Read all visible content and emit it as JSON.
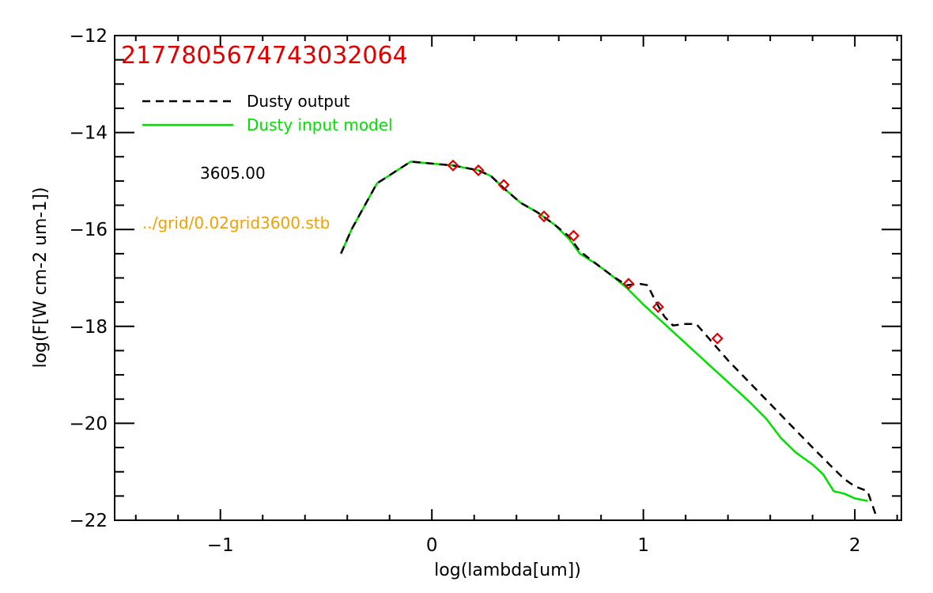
{
  "chart_data": {
    "type": "line",
    "title": "2177805674743032064",
    "xlabel": "log(lambda[um])",
    "ylabel": "log(F[W cm-2 um-1])",
    "xlim": [
      -1.5,
      2.22
    ],
    "ylim": [
      -22,
      -12
    ],
    "xticks": [
      -1,
      0,
      1,
      2
    ],
    "xtick_labels": [
      "−1",
      "0",
      "1",
      "2"
    ],
    "yticks": [
      -22,
      -20,
      -18,
      -16,
      -14,
      -12
    ],
    "ytick_labels": [
      "−22",
      "−20",
      "−18",
      "−16",
      "−14",
      "−12"
    ],
    "grid": false,
    "legend_position": "top-left",
    "annotations": {
      "temperature": "3605.00",
      "model_file": "../grid/0.02grid3600.stb"
    },
    "colors": {
      "output": "#000000",
      "input": "#00e000",
      "observed": "#e00000",
      "title": "#e00000",
      "model_file": "#f0a000"
    },
    "series": [
      {
        "name": "Dusty output",
        "style": "dashed",
        "x": [
          -0.43,
          -0.38,
          -0.26,
          -0.1,
          0.02,
          0.1,
          0.22,
          0.28,
          0.34,
          0.42,
          0.5,
          0.58,
          0.65,
          0.7,
          0.78,
          0.85,
          0.92,
          0.98,
          1.02,
          1.06,
          1.1,
          1.14,
          1.2,
          1.25,
          1.32,
          1.4,
          1.5,
          1.6,
          1.7,
          1.8,
          1.88,
          1.95,
          2.0,
          2.06,
          2.1
        ],
        "y": [
          -16.5,
          -16.0,
          -15.05,
          -14.6,
          -14.65,
          -14.68,
          -14.78,
          -14.9,
          -15.15,
          -15.45,
          -15.65,
          -15.9,
          -16.15,
          -16.45,
          -16.72,
          -16.95,
          -17.15,
          -17.12,
          -17.15,
          -17.5,
          -17.8,
          -17.98,
          -17.95,
          -17.95,
          -18.3,
          -18.7,
          -19.15,
          -19.6,
          -20.05,
          -20.5,
          -20.85,
          -21.15,
          -21.3,
          -21.4,
          -21.9
        ]
      },
      {
        "name": "Dusty input model",
        "style": "solid",
        "x": [
          -0.43,
          -0.38,
          -0.26,
          -0.1,
          0.02,
          0.1,
          0.22,
          0.28,
          0.34,
          0.42,
          0.5,
          0.58,
          0.65,
          0.7,
          0.78,
          0.85,
          0.92,
          1.0,
          1.1,
          1.2,
          1.3,
          1.4,
          1.5,
          1.58,
          1.65,
          1.72,
          1.8,
          1.85,
          1.9,
          1.95,
          2.0,
          2.06
        ],
        "y": [
          -16.5,
          -16.0,
          -15.05,
          -14.6,
          -14.65,
          -14.68,
          -14.78,
          -14.9,
          -15.15,
          -15.45,
          -15.65,
          -15.9,
          -16.2,
          -16.5,
          -16.72,
          -16.95,
          -17.2,
          -17.55,
          -17.95,
          -18.35,
          -18.75,
          -19.15,
          -19.55,
          -19.9,
          -20.3,
          -20.6,
          -20.85,
          -21.05,
          -21.4,
          -21.45,
          -21.55,
          -21.6
        ]
      },
      {
        "name": "observed",
        "style": "diamond",
        "x": [
          0.1,
          0.22,
          0.34,
          0.53,
          0.67,
          0.93,
          1.07,
          1.35
        ],
        "y": [
          -14.68,
          -14.78,
          -15.08,
          -15.73,
          -16.13,
          -17.12,
          -17.6,
          -18.25
        ]
      }
    ]
  }
}
